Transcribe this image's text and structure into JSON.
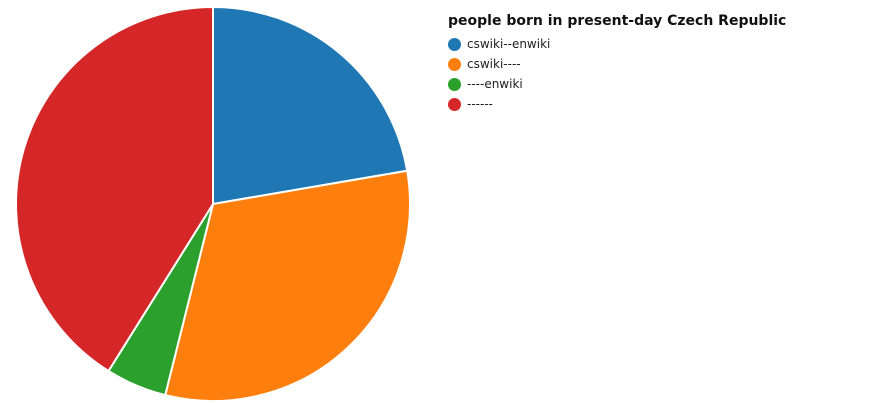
{
  "chart_data": {
    "type": "pie",
    "categories": [
      "cswiki--enwiki",
      "cswiki----",
      "----enwiki",
      "------"
    ],
    "values": [
      22.3,
      31.6,
      5.0,
      41.1
    ],
    "colors": [
      "#1f77b4",
      "#ff7f0e",
      "#2ca02c",
      "#d62728"
    ],
    "legend_title": "people born in present-day Czech Republic",
    "legend_position": "top-right"
  }
}
